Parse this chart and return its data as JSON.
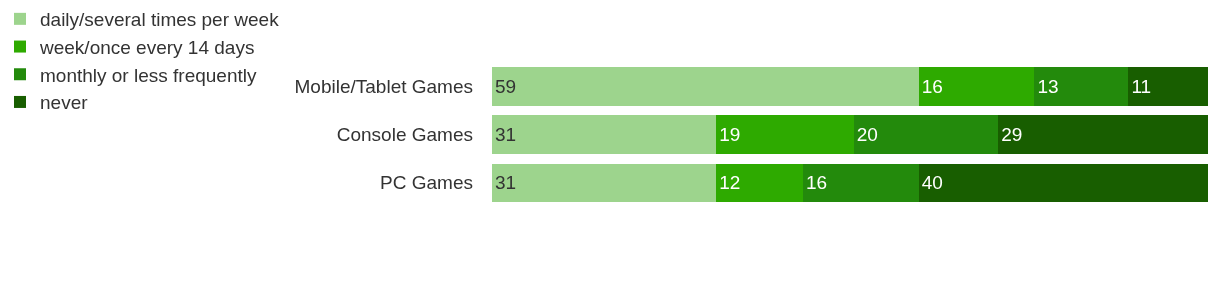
{
  "chart_data": {
    "type": "bar",
    "orientation": "horizontal",
    "stacked": true,
    "data_labels": true,
    "legend": "top left",
    "categories": [
      "Mobile/Tablet Games",
      "Console Games",
      "PC Games"
    ],
    "series": [
      {
        "name": "daily/several times per week",
        "color": "#9dd48d",
        "values": [
          59,
          31,
          31
        ]
      },
      {
        "name": "week/once every 14 days",
        "color": "#2eaa00",
        "values": [
          16,
          19,
          12
        ]
      },
      {
        "name": "monthly or less frequently",
        "color": "#238a0c",
        "values": [
          13,
          20,
          16
        ]
      },
      {
        "name": "never",
        "color": "#185e00",
        "values": [
          11,
          29,
          40
        ]
      }
    ]
  }
}
